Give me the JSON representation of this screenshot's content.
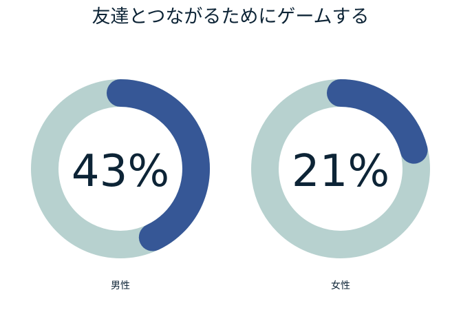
{
  "chart_data": [
    {
      "type": "pie",
      "variant": "donut-gauge",
      "title": "友達とつながるためにゲームする",
      "category": "男性",
      "value": 43,
      "value_label": "43%",
      "colors": {
        "fill": "#365796",
        "track": "#b7d1cf"
      }
    },
    {
      "type": "pie",
      "variant": "donut-gauge",
      "title": "友達とつながるためにゲームする",
      "category": "女性",
      "value": 21,
      "value_label": "21%",
      "colors": {
        "fill": "#365796",
        "track": "#b7d1cf"
      }
    }
  ],
  "title": "友達とつながるためにゲームする",
  "colors": {
    "text": "#0d2436"
  }
}
